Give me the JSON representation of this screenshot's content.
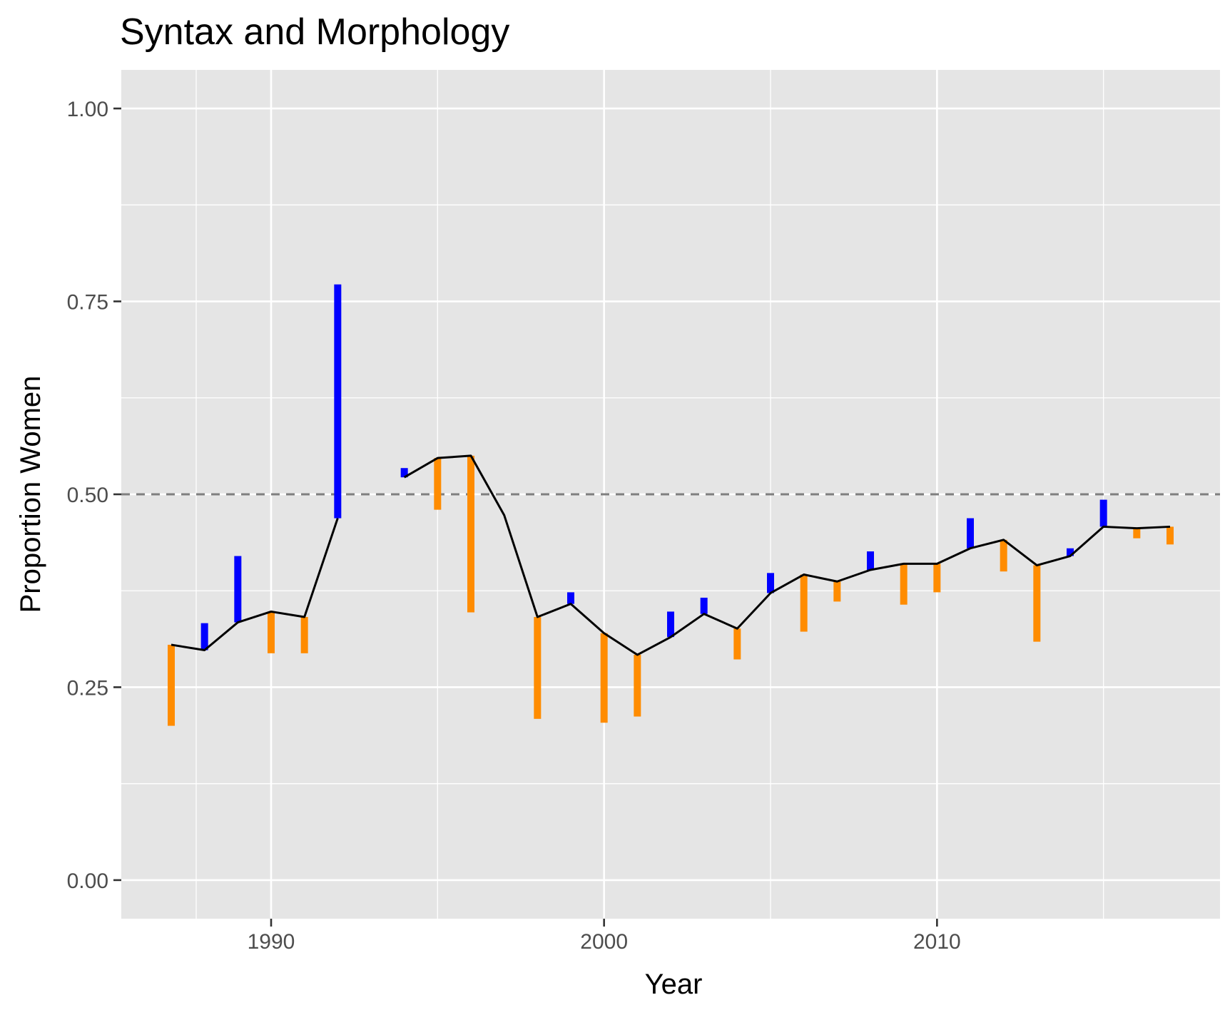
{
  "chart_data": {
    "type": "line",
    "title": "Syntax and Morphology",
    "xlabel": "Year",
    "ylabel": "Proportion Women",
    "xlim": [
      1985.5,
      2018.5
    ],
    "ylim": [
      -0.05,
      1.05
    ],
    "x_ticks": [
      1990,
      2000,
      2010
    ],
    "x_tick_labels": [
      "1990",
      "2000",
      "2010"
    ],
    "y_ticks": [
      0.0,
      0.25,
      0.5,
      0.75,
      1.0
    ],
    "y_tick_labels": [
      "0.00",
      "0.25",
      "0.50",
      "0.75",
      "1.00"
    ],
    "reference_line": {
      "y": 0.5,
      "style": "dashed",
      "color": "#7f7f7f"
    },
    "grid": true,
    "line_color": "#000000",
    "colors": {
      "above": "#0000ff",
      "below": "#ff8c00",
      "panel": "#e5e5e5",
      "grid": "#ffffff"
    },
    "line_segments": [
      [
        [
          1987,
          0.305
        ],
        [
          1988,
          0.298
        ],
        [
          1989,
          0.334
        ],
        [
          1990,
          0.348
        ],
        [
          1991,
          0.341
        ],
        [
          1992,
          0.469
        ]
      ],
      [
        [
          1994,
          0.522
        ],
        [
          1995,
          0.547
        ],
        [
          1996,
          0.55
        ],
        [
          1997,
          0.473
        ],
        [
          1998,
          0.341
        ],
        [
          1999,
          0.358
        ],
        [
          2000,
          0.32
        ],
        [
          2001,
          0.292
        ],
        [
          2002,
          0.315
        ],
        [
          2003,
          0.345
        ],
        [
          2004,
          0.326
        ],
        [
          2005,
          0.372
        ],
        [
          2006,
          0.396
        ],
        [
          2007,
          0.387
        ],
        [
          2008,
          0.402
        ],
        [
          2009,
          0.41
        ],
        [
          2010,
          0.41
        ],
        [
          2011,
          0.43
        ],
        [
          2012,
          0.441
        ],
        [
          2013,
          0.408
        ],
        [
          2014,
          0.42
        ],
        [
          2015,
          0.458
        ],
        [
          2016,
          0.456
        ],
        [
          2017,
          0.458
        ]
      ]
    ],
    "bars": [
      {
        "x": 1987,
        "y0": 0.305,
        "y1": 0.2,
        "dir": "below"
      },
      {
        "x": 1988,
        "y0": 0.298,
        "y1": 0.333,
        "dir": "above"
      },
      {
        "x": 1989,
        "y0": 0.334,
        "y1": 0.42,
        "dir": "above"
      },
      {
        "x": 1990,
        "y0": 0.348,
        "y1": 0.294,
        "dir": "below"
      },
      {
        "x": 1991,
        "y0": 0.341,
        "y1": 0.294,
        "dir": "below"
      },
      {
        "x": 1992,
        "y0": 0.469,
        "y1": 0.772,
        "dir": "above"
      },
      {
        "x": 1994,
        "y0": 0.522,
        "y1": 0.534,
        "dir": "above"
      },
      {
        "x": 1995,
        "y0": 0.547,
        "y1": 0.48,
        "dir": "below"
      },
      {
        "x": 1996,
        "y0": 0.55,
        "y1": 0.347,
        "dir": "below"
      },
      {
        "x": 1998,
        "y0": 0.341,
        "y1": 0.209,
        "dir": "below"
      },
      {
        "x": 1999,
        "y0": 0.358,
        "y1": 0.373,
        "dir": "above"
      },
      {
        "x": 2000,
        "y0": 0.32,
        "y1": 0.204,
        "dir": "below"
      },
      {
        "x": 2001,
        "y0": 0.292,
        "y1": 0.212,
        "dir": "below"
      },
      {
        "x": 2002,
        "y0": 0.315,
        "y1": 0.348,
        "dir": "above"
      },
      {
        "x": 2003,
        "y0": 0.345,
        "y1": 0.366,
        "dir": "above"
      },
      {
        "x": 2004,
        "y0": 0.326,
        "y1": 0.286,
        "dir": "below"
      },
      {
        "x": 2005,
        "y0": 0.372,
        "y1": 0.398,
        "dir": "above"
      },
      {
        "x": 2006,
        "y0": 0.396,
        "y1": 0.322,
        "dir": "below"
      },
      {
        "x": 2007,
        "y0": 0.387,
        "y1": 0.361,
        "dir": "below"
      },
      {
        "x": 2008,
        "y0": 0.402,
        "y1": 0.426,
        "dir": "above"
      },
      {
        "x": 2009,
        "y0": 0.41,
        "y1": 0.357,
        "dir": "below"
      },
      {
        "x": 2010,
        "y0": 0.41,
        "y1": 0.373,
        "dir": "below"
      },
      {
        "x": 2011,
        "y0": 0.43,
        "y1": 0.469,
        "dir": "above"
      },
      {
        "x": 2012,
        "y0": 0.441,
        "y1": 0.4,
        "dir": "below"
      },
      {
        "x": 2013,
        "y0": 0.408,
        "y1": 0.309,
        "dir": "below"
      },
      {
        "x": 2014,
        "y0": 0.42,
        "y1": 0.43,
        "dir": "above"
      },
      {
        "x": 2015,
        "y0": 0.458,
        "y1": 0.493,
        "dir": "above"
      },
      {
        "x": 2016,
        "y0": 0.456,
        "y1": 0.443,
        "dir": "below"
      },
      {
        "x": 2017,
        "y0": 0.458,
        "y1": 0.435,
        "dir": "below"
      }
    ]
  }
}
